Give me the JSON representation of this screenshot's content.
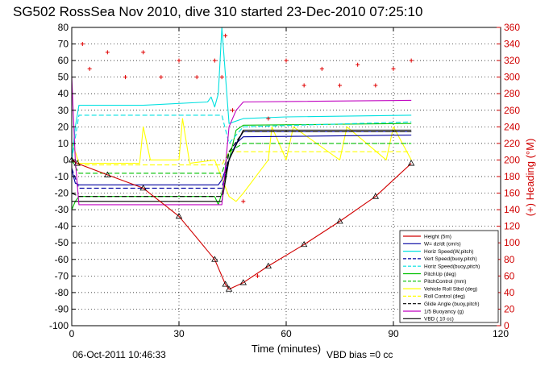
{
  "chart_data": {
    "type": "line",
    "title": "SG502 RossSea Nov 2010, dive 310 started 23-Dec-2010 07:25:10",
    "xlabel": "Time (minutes)",
    "ylabel_right": "(+) Heading (°M)",
    "xlim": [
      0,
      120
    ],
    "ylim": [
      -100,
      80
    ],
    "ylim_right": [
      0,
      360
    ],
    "x_ticks": [
      "0",
      "30",
      "60",
      "90",
      "120"
    ],
    "y_ticks": [
      "80",
      "70",
      "60",
      "50",
      "40",
      "30",
      "20",
      "10",
      "0",
      "-10",
      "-20",
      "-30",
      "-40",
      "-50",
      "-60",
      "-70",
      "-80",
      "-90",
      "-100"
    ],
    "y_ticks_right": [
      "360",
      "340",
      "320",
      "300",
      "280",
      "260",
      "240",
      "220",
      "200",
      "180",
      "160",
      "140",
      "120",
      "100",
      "80",
      "60",
      "40",
      "20",
      "0"
    ],
    "grid": true,
    "legend_position": "bottom-right",
    "footer_left": "06-Oct-2011 10:46:33",
    "footer_right": "VBD bias =0 cc",
    "colors": {
      "height": "#d00000",
      "w": "#0000a0",
      "horiz": "#00e0e0",
      "pitch": "#00c000",
      "roll": "#ffff00",
      "glide": "#000000",
      "buoyancy": "#c000c0",
      "vbd": "#000000",
      "heading": "#e00000"
    },
    "legend": [
      {
        "label": "Height (5m)",
        "color": "#d00000",
        "dash": "solid"
      },
      {
        "label": "W= dz/dt (cm/s)",
        "color": "#0000a0",
        "dash": "solid"
      },
      {
        "label": "Horiz Speed(W,pitch)",
        "color": "#00e0e0",
        "dash": "solid"
      },
      {
        "label": "Vert Speed(buoy,pitch)",
        "color": "#0000a0",
        "dash": "dashed"
      },
      {
        "label": "Horiz Speed(buoy,pitch)",
        "color": "#00e0e0",
        "dash": "dashed"
      },
      {
        "label": "PitchUp (deg)",
        "color": "#00c000",
        "dash": "solid"
      },
      {
        "label": "PitchControl (mm)",
        "color": "#00c000",
        "dash": "dashed"
      },
      {
        "label": "Vehicle Roll Stbd (deg)",
        "color": "#ffff00",
        "dash": "solid"
      },
      {
        "label": "Roll Control (deg)",
        "color": "#ffff00",
        "dash": "dashed"
      },
      {
        "label": "Glide Angle (buoy,pitch)",
        "color": "#000000",
        "dash": "dashed"
      },
      {
        "label": "1/5 Buoyancy (g)",
        "color": "#c000c0",
        "dash": "solid"
      },
      {
        "label": "VBD ( 10 cc)",
        "color": "#000000",
        "dash": "solid"
      }
    ],
    "series": [
      {
        "key": "height",
        "x": [
          0,
          1.5,
          10,
          20,
          30,
          40,
          43,
          44,
          48,
          55,
          65,
          75,
          85,
          95
        ],
        "y": [
          0,
          -2,
          -9,
          -17,
          -34,
          -60,
          -75,
          -78,
          -74,
          -64,
          -51,
          -37,
          -22,
          -2
        ],
        "markers": true
      },
      {
        "key": "w",
        "x": [
          0,
          0.5,
          1,
          2,
          41,
          42,
          44,
          46,
          48,
          95
        ],
        "y": [
          -5,
          -10,
          -14,
          -15,
          -15,
          -12,
          0,
          10,
          14,
          15
        ]
      },
      {
        "key": "horiz",
        "x": [
          0,
          1,
          2,
          20,
          38,
          39,
          40,
          41,
          42,
          44,
          48,
          60,
          95
        ],
        "y": [
          0,
          20,
          33,
          33,
          35,
          38,
          32,
          40,
          80,
          22,
          25,
          26,
          27
        ]
      },
      {
        "key": "vert_buoy",
        "x": [
          0,
          2,
          42,
          44,
          46,
          48,
          95
        ],
        "y": [
          -5,
          -17,
          -17,
          0,
          10,
          17,
          17
        ]
      },
      {
        "key": "horiz_buoy",
        "x": [
          0,
          2,
          42,
          44,
          48,
          95
        ],
        "y": [
          0,
          27,
          27,
          10,
          20,
          23
        ]
      },
      {
        "key": "pitch_up",
        "x": [
          0,
          1,
          2,
          40,
          41,
          42,
          44,
          46,
          48,
          95
        ],
        "y": [
          -30,
          -25,
          -22,
          -22,
          -27,
          -20,
          0,
          18,
          21,
          22
        ]
      },
      {
        "key": "pitch_control",
        "x": [
          0,
          2,
          42,
          44,
          48,
          95
        ],
        "y": [
          0,
          -8,
          -8,
          5,
          10,
          10
        ]
      },
      {
        "key": "roll_stbd",
        "x": [
          0,
          1,
          2,
          19,
          20,
          22,
          30,
          31,
          33,
          40,
          44,
          46,
          48,
          55,
          56,
          60,
          62,
          75,
          77,
          88,
          90,
          95
        ],
        "y": [
          10,
          5,
          -2,
          -2,
          20,
          0,
          0,
          25,
          -2,
          0,
          -22,
          -25,
          -20,
          0,
          20,
          0,
          20,
          0,
          20,
          0,
          20,
          0
        ]
      },
      {
        "key": "roll_control",
        "x": [
          0,
          2,
          42,
          44,
          48,
          95
        ],
        "y": [
          0,
          -3,
          -3,
          5,
          5,
          5
        ]
      },
      {
        "key": "glide",
        "x": [
          0,
          2,
          42,
          44,
          48,
          95
        ],
        "y": [
          -20,
          -22,
          -22,
          5,
          17,
          17
        ]
      },
      {
        "key": "buoyancy",
        "x": [
          0,
          1,
          2,
          42,
          44,
          46,
          48,
          95
        ],
        "y": [
          50,
          0,
          -27,
          -27,
          20,
          30,
          35,
          36
        ]
      },
      {
        "key": "vbd",
        "x": [
          0,
          2,
          42,
          44,
          48,
          95
        ],
        "y": [
          -25,
          -25,
          -25,
          0,
          18,
          18
        ]
      },
      {
        "key": "heading",
        "axis": "right",
        "x": [
          3,
          5,
          10,
          15,
          20,
          25,
          30,
          35,
          40,
          42,
          43,
          45,
          48,
          52,
          55,
          60,
          65,
          70,
          75,
          80,
          85,
          90,
          95
        ],
        "y": [
          340,
          310,
          330,
          300,
          330,
          300,
          320,
          300,
          320,
          300,
          350,
          260,
          150,
          60,
          250,
          320,
          290,
          310,
          290,
          315,
          290,
          310,
          320
        ]
      }
    ]
  }
}
